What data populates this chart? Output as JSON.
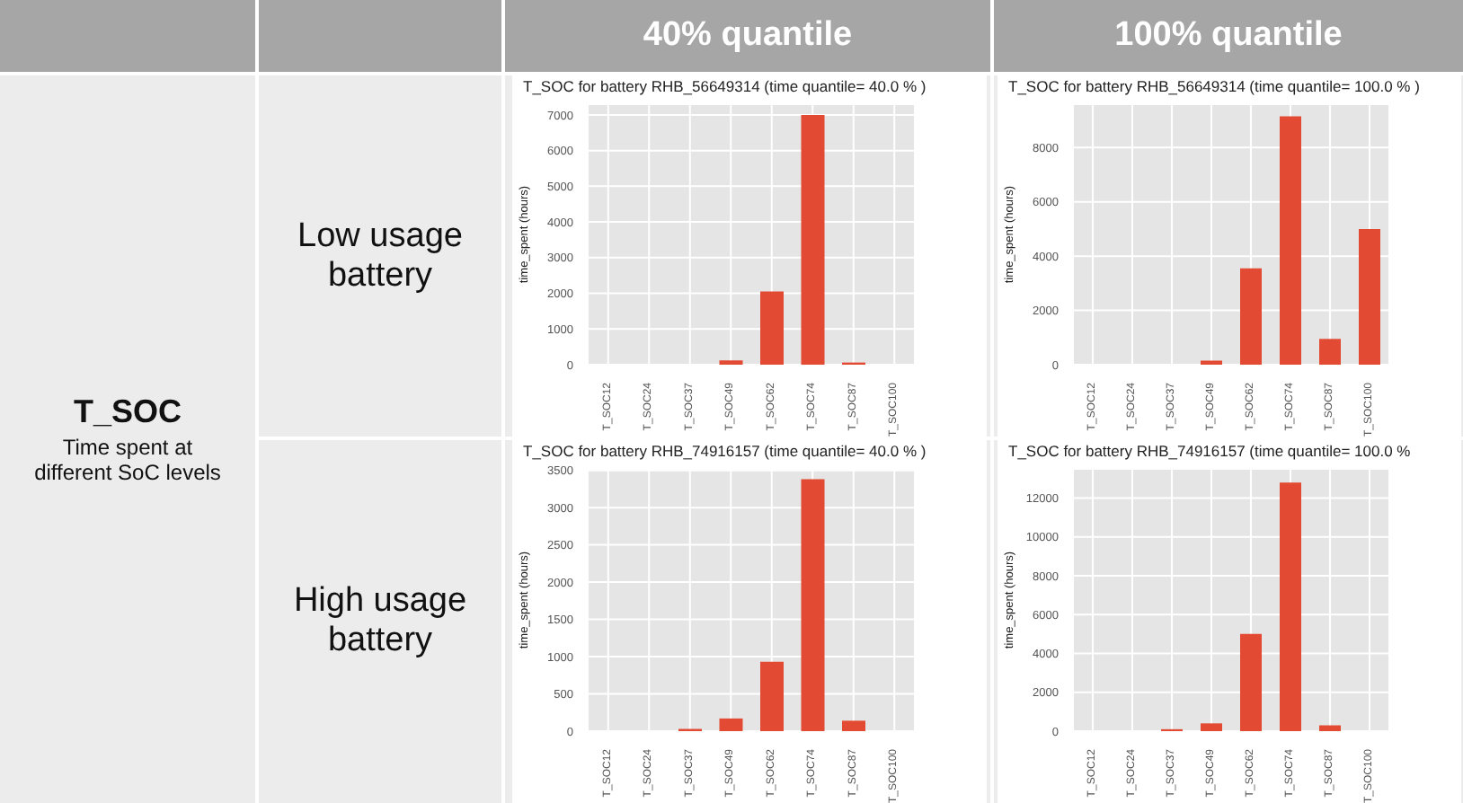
{
  "chart_data": [
    {
      "type": "bar",
      "title": "T_SOC for battery RHB_56649314 (time quantile= 40.0 % )",
      "ylabel": "time_spent (hours)",
      "categories": [
        "T_SOC12",
        "T_SOC24",
        "T_SOC37",
        "T_SOC49",
        "T_SOC62",
        "T_SOC74",
        "T_SOC87",
        "T_SOC100"
      ],
      "values": [
        0,
        0,
        0,
        120,
        2050,
        7000,
        60,
        0
      ],
      "color": "#e24a33",
      "ylim": [
        0,
        7300
      ],
      "yticks": [
        0,
        1000,
        2000,
        3000,
        4000,
        5000,
        6000,
        7000
      ],
      "grid": true,
      "annotations": [
        "T_SOC",
        "Time spent at different SoC levels",
        "40% quantile",
        "Low usage battery"
      ]
    },
    {
      "type": "bar",
      "title": "T_SOC for battery RHB_56649314 (time quantile= 100.0 % )",
      "ylabel": "time_spent (hours)",
      "categories": [
        "T_SOC12",
        "T_SOC24",
        "T_SOC37",
        "T_SOC49",
        "T_SOC62",
        "T_SOC74",
        "T_SOC87",
        "T_SOC100"
      ],
      "values": [
        0,
        0,
        0,
        150,
        3550,
        9150,
        950,
        5000
      ],
      "color": "#e24a33",
      "ylim": [
        0,
        9600
      ],
      "yticks": [
        0,
        2000,
        4000,
        6000,
        8000
      ],
      "grid": true,
      "annotations": [
        "100% quantile"
      ]
    },
    {
      "type": "bar",
      "title": "T_SOC for battery RHB_74916157 (time quantile= 40.0 % )",
      "ylabel": "time_spent (hours)",
      "categories": [
        "T_SOC12",
        "T_SOC24",
        "T_SOC37",
        "T_SOC49",
        "T_SOC62",
        "T_SOC74",
        "T_SOC87",
        "T_SOC100"
      ],
      "values": [
        0,
        0,
        30,
        170,
        930,
        3380,
        140,
        0
      ],
      "color": "#e24a33",
      "ylim": [
        0,
        3520
      ],
      "yticks": [
        0,
        500,
        1000,
        1500,
        2000,
        2500,
        3000,
        3500
      ],
      "grid": true,
      "annotations": [
        "High usage battery"
      ]
    },
    {
      "type": "bar",
      "title": "T_SOC for battery RHB_74916157 (time quantile= 100.0 %",
      "ylabel": "time_spent (hours)",
      "categories": [
        "T_SOC12",
        "T_SOC24",
        "T_SOC37",
        "T_SOC49",
        "T_SOC62",
        "T_SOC74",
        "T_SOC87",
        "T_SOC100"
      ],
      "values": [
        0,
        0,
        100,
        400,
        5000,
        12800,
        300,
        0
      ],
      "color": "#e24a33",
      "ylim": [
        0,
        13500
      ],
      "yticks": [
        0,
        2000,
        4000,
        6000,
        8000,
        10000,
        12000
      ],
      "grid": true
    }
  ]
}
